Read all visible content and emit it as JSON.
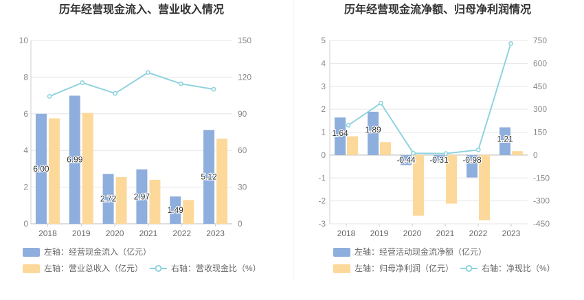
{
  "chart_data": [
    {
      "type": "bar",
      "title": "历年经营现金流入、营业收入情况",
      "categories": [
        "2018",
        "2019",
        "2020",
        "2021",
        "2022",
        "2023"
      ],
      "left_axis": {
        "min": 0,
        "max": 10,
        "ticks": [
          "0",
          "2",
          "4",
          "6",
          "8",
          "10"
        ]
      },
      "right_axis": {
        "min": 0,
        "max": 150,
        "ticks": [
          "0",
          "30",
          "60",
          "90",
          "120",
          "150"
        ]
      },
      "series": [
        {
          "name": "左轴：经营现金流入（亿元）",
          "type": "bar",
          "axis": "left",
          "color": "#8eaedd",
          "values": [
            6.0,
            6.99,
            2.72,
            2.97,
            1.49,
            5.12
          ],
          "labels": [
            "6.00",
            "6.99",
            "2.72",
            "2.97",
            "1.49",
            "5.12"
          ]
        },
        {
          "name": "左轴：营业总收入（亿元）",
          "type": "bar",
          "axis": "left",
          "color": "#fcd99a",
          "values": [
            5.75,
            6.05,
            2.55,
            2.4,
            1.3,
            4.65
          ]
        },
        {
          "name": "右轴：营收现金比（%）",
          "type": "line",
          "axis": "right",
          "color": "#8fd3de",
          "values": [
            104.3,
            115.5,
            106.7,
            123.8,
            114.6,
            110.1
          ]
        }
      ],
      "grid": true,
      "legend_position": "bottom"
    },
    {
      "type": "bar",
      "title": "历年经营现金流净额、归母净利润情况",
      "categories": [
        "2018",
        "2019",
        "2020",
        "2021",
        "2022",
        "2023"
      ],
      "left_axis": {
        "min": -3,
        "max": 5,
        "ticks": [
          "-3",
          "-2",
          "-1",
          "0",
          "1",
          "2",
          "3",
          "4",
          "5"
        ]
      },
      "right_axis": {
        "min": -450,
        "max": 750,
        "ticks": [
          "-450",
          "-300",
          "-150",
          "0",
          "150",
          "300",
          "450",
          "600",
          "750"
        ]
      },
      "series": [
        {
          "name": "左轴：经营活动现金流净额（亿元）",
          "type": "bar",
          "axis": "left",
          "color": "#8eaedd",
          "values": [
            1.64,
            1.89,
            -0.44,
            -0.31,
            -0.98,
            1.21
          ],
          "labels": [
            "1.64",
            "1.89",
            "-0.44",
            "-0.31",
            "-0.98",
            "1.21"
          ]
        },
        {
          "name": "左轴：归母净利润（亿元）",
          "type": "bar",
          "axis": "left",
          "color": "#fcd99a",
          "values": [
            0.82,
            0.56,
            -2.65,
            -2.12,
            -2.85,
            0.17
          ]
        },
        {
          "name": "右轴：净现比（%）",
          "type": "line",
          "axis": "right",
          "color": "#8fd3de",
          "values": [
            195,
            340,
            12,
            10,
            34,
            730
          ]
        }
      ],
      "grid": true,
      "legend_position": "bottom"
    }
  ]
}
